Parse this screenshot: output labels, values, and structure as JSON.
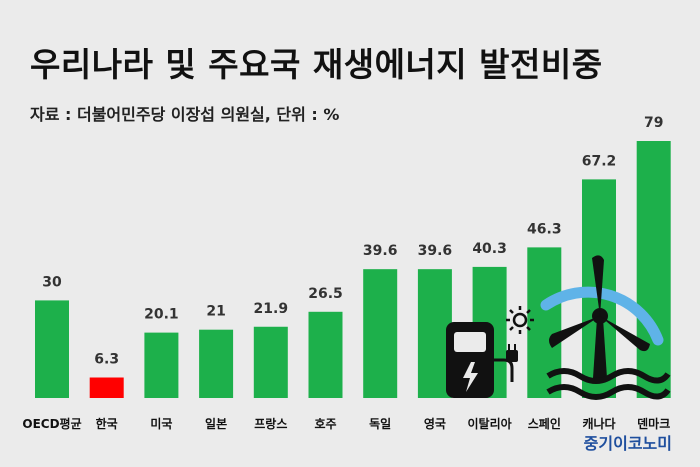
{
  "title": "우리나라 및 주요국 재생에너지 발전비중",
  "subtitle": "자료 : 더불어민주당 이장섭 의원실, 단위 : %",
  "watermark": "중기이코노미",
  "colors": {
    "bar": "#1db04b",
    "highlight": "#ff0000",
    "background": "#ebebeb",
    "icon": "#111111",
    "arc": "#5fb3e8"
  },
  "decoration_icons": [
    "ev-charger-icon",
    "solar-sun-icon",
    "wind-turbine-icon",
    "water-wave-icon"
  ],
  "chart_data": {
    "type": "bar",
    "title": "우리나라 및 주요국 재생에너지 발전비중",
    "categories": [
      "OECD평균",
      "한국",
      "미국",
      "일본",
      "프랑스",
      "호주",
      "독일",
      "영국",
      "이탈리아",
      "스페인",
      "캐나다",
      "덴마크"
    ],
    "values": [
      30,
      6.3,
      20.1,
      21,
      21.9,
      26.5,
      39.6,
      39.6,
      40.3,
      46.3,
      67.2,
      79
    ],
    "value_labels": [
      "30",
      "6.3",
      "20.1",
      "21",
      "21.9",
      "26.5",
      "39.6",
      "39.6",
      "40.3",
      "46.3",
      "67.2",
      "79"
    ],
    "highlight_category": "한국",
    "unit": "%",
    "grid": false,
    "legend": "none",
    "ylim": [
      0,
      79
    ]
  }
}
